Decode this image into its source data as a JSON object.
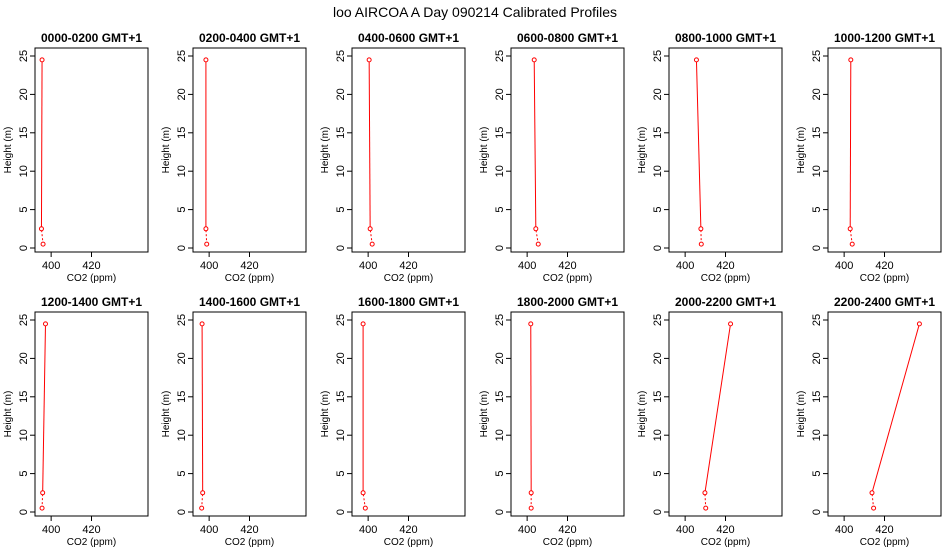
{
  "title": "loo AIRCOA A  Day 090214  Calibrated Profiles",
  "colors": {
    "series": "#ff0000",
    "axis": "#000000",
    "background": "#ffffff"
  },
  "chart_data": [
    {
      "type": "line",
      "title": "0000-0200 GMT+1",
      "xlabel": "CO2 (ppm)",
      "ylabel": "Height (m)",
      "xlim": [
        392,
        448
      ],
      "ylim": [
        0,
        25
      ],
      "xticks": [
        "400",
        "420"
      ],
      "yticks": [
        "0",
        "5",
        "10",
        "15",
        "20",
        "25"
      ],
      "x": [
        396.0,
        395.2,
        395.5
      ],
      "y": [
        0.5,
        2.5,
        24.5
      ]
    },
    {
      "type": "line",
      "title": "0200-0400 GMT+1",
      "xlabel": "CO2 (ppm)",
      "ylabel": "Height (m)",
      "xlim": [
        392,
        448
      ],
      "ylim": [
        0,
        25
      ],
      "xticks": [
        "400",
        "420"
      ],
      "yticks": [
        "0",
        "5",
        "10",
        "15",
        "20",
        "25"
      ],
      "x": [
        398.8,
        398.4,
        398.4
      ],
      "y": [
        0.5,
        2.5,
        24.5
      ]
    },
    {
      "type": "line",
      "title": "0400-0600 GMT+1",
      "xlabel": "CO2 (ppm)",
      "ylabel": "Height (m)",
      "xlim": [
        392,
        448
      ],
      "ylim": [
        0,
        25
      ],
      "xticks": [
        "400",
        "420"
      ],
      "yticks": [
        "0",
        "5",
        "10",
        "15",
        "20",
        "25"
      ],
      "x": [
        402.0,
        401.0,
        400.5
      ],
      "y": [
        0.5,
        2.5,
        24.5
      ]
    },
    {
      "type": "line",
      "title": "0600-0800 GMT+1",
      "xlabel": "CO2 (ppm)",
      "ylabel": "Height (m)",
      "xlim": [
        392,
        448
      ],
      "ylim": [
        0,
        25
      ],
      "xticks": [
        "400",
        "420"
      ],
      "yticks": [
        "0",
        "5",
        "10",
        "15",
        "20",
        "25"
      ],
      "x": [
        405.5,
        404.3,
        403.5
      ],
      "y": [
        0.5,
        2.5,
        24.5
      ]
    },
    {
      "type": "line",
      "title": "0800-1000 GMT+1",
      "xlabel": "CO2 (ppm)",
      "ylabel": "Height (m)",
      "xlim": [
        392,
        448
      ],
      "ylim": [
        0,
        25
      ],
      "xticks": [
        "400",
        "420"
      ],
      "yticks": [
        "0",
        "5",
        "10",
        "15",
        "20",
        "25"
      ],
      "x": [
        408.0,
        407.8,
        405.6
      ],
      "y": [
        0.5,
        2.5,
        24.5
      ]
    },
    {
      "type": "line",
      "title": "1000-1200 GMT+1",
      "xlabel": "CO2 (ppm)",
      "ylabel": "Height (m)",
      "xlim": [
        392,
        448
      ],
      "ylim": [
        0,
        25
      ],
      "xticks": [
        "400",
        "420"
      ],
      "yticks": [
        "0",
        "5",
        "10",
        "15",
        "20",
        "25"
      ],
      "x": [
        404.0,
        403.0,
        403.3
      ],
      "y": [
        0.5,
        2.5,
        24.5
      ]
    },
    {
      "type": "line",
      "title": "1200-1400 GMT+1",
      "xlabel": "CO2 (ppm)",
      "ylabel": "Height (m)",
      "xlim": [
        392,
        448
      ],
      "ylim": [
        0,
        25
      ],
      "xticks": [
        "400",
        "420"
      ],
      "yticks": [
        "0",
        "5",
        "10",
        "15",
        "20",
        "25"
      ],
      "x": [
        395.5,
        395.8,
        397.2
      ],
      "y": [
        0.5,
        2.5,
        24.5
      ]
    },
    {
      "type": "line",
      "title": "1400-1600 GMT+1",
      "xlabel": "CO2 (ppm)",
      "ylabel": "Height (m)",
      "xlim": [
        392,
        448
      ],
      "ylim": [
        0,
        25
      ],
      "xticks": [
        "400",
        "420"
      ],
      "yticks": [
        "0",
        "5",
        "10",
        "15",
        "20",
        "25"
      ],
      "x": [
        396.3,
        396.8,
        396.5
      ],
      "y": [
        0.5,
        2.5,
        24.5
      ]
    },
    {
      "type": "line",
      "title": "1600-1800 GMT+1",
      "xlabel": "CO2 (ppm)",
      "ylabel": "Height (m)",
      "xlim": [
        392,
        448
      ],
      "ylim": [
        0,
        25
      ],
      "xticks": [
        "400",
        "420"
      ],
      "yticks": [
        "0",
        "5",
        "10",
        "15",
        "20",
        "25"
      ],
      "x": [
        398.6,
        397.5,
        397.5
      ],
      "y": [
        0.5,
        2.5,
        24.5
      ]
    },
    {
      "type": "line",
      "title": "1800-2000 GMT+1",
      "xlabel": "CO2 (ppm)",
      "ylabel": "Height (m)",
      "xlim": [
        392,
        448
      ],
      "ylim": [
        0,
        25
      ],
      "xticks": [
        "400",
        "420"
      ],
      "yticks": [
        "0",
        "5",
        "10",
        "15",
        "20",
        "25"
      ],
      "x": [
        402.0,
        402.0,
        401.8
      ],
      "y": [
        0.5,
        2.5,
        24.5
      ]
    },
    {
      "type": "line",
      "title": "2000-2200 GMT+1",
      "xlabel": "CO2 (ppm)",
      "ylabel": "Height (m)",
      "xlim": [
        392,
        448
      ],
      "ylim": [
        0,
        25
      ],
      "xticks": [
        "400",
        "420"
      ],
      "yticks": [
        "0",
        "5",
        "10",
        "15",
        "20",
        "25"
      ],
      "x": [
        410.2,
        409.8,
        422.5
      ],
      "y": [
        0.5,
        2.5,
        24.5
      ]
    },
    {
      "type": "line",
      "title": "2200-2400 GMT+1",
      "xlabel": "CO2 (ppm)",
      "ylabel": "Height (m)",
      "xlim": [
        392,
        448
      ],
      "ylim": [
        0,
        25
      ],
      "xticks": [
        "400",
        "420"
      ],
      "yticks": [
        "0",
        "5",
        "10",
        "15",
        "20",
        "25"
      ],
      "x": [
        414.6,
        413.8,
        437.3
      ],
      "y": [
        0.5,
        2.5,
        24.5
      ]
    }
  ]
}
